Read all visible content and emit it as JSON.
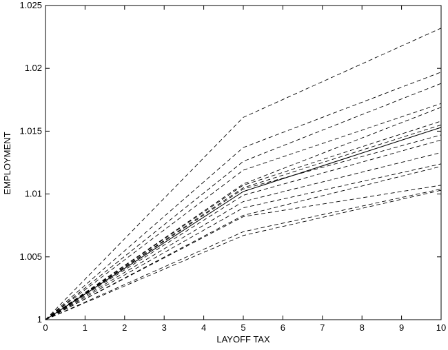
{
  "chart_data": {
    "type": "line",
    "title": "",
    "xlabel": "LAYOFF TAX",
    "ylabel": "EMPLOYMENT",
    "xlim": [
      0,
      10
    ],
    "ylim": [
      1.0,
      1.025
    ],
    "xticks": [
      0,
      1,
      2,
      3,
      4,
      5,
      6,
      7,
      8,
      9,
      10
    ],
    "yticks": [
      1,
      1.005,
      1.01,
      1.015,
      1.02,
      1.025
    ],
    "ytick_labels": [
      "1",
      "1.005",
      "1.01",
      "1.015",
      "1.02",
      "1.025"
    ],
    "grid": false,
    "legend": "none",
    "x": [
      0,
      5,
      10
    ],
    "series": [
      {
        "style": "solid",
        "values": [
          1.0,
          1.0102,
          1.0153
        ]
      },
      {
        "style": "dashed",
        "values": [
          1.0,
          1.0161,
          1.0232
        ]
      },
      {
        "style": "dashed",
        "values": [
          1.0,
          1.0137,
          1.0197
        ]
      },
      {
        "style": "dashed",
        "values": [
          1.0,
          1.0126,
          1.0188
        ]
      },
      {
        "style": "dashed",
        "values": [
          1.0,
          1.0119,
          1.0172
        ]
      },
      {
        "style": "dashed",
        "values": [
          1.0,
          1.0108,
          1.0169
        ]
      },
      {
        "style": "dashed",
        "values": [
          1.0,
          1.0107,
          1.0158
        ]
      },
      {
        "style": "dashed",
        "values": [
          1.0,
          1.0105,
          1.0155
        ]
      },
      {
        "style": "dashed",
        "values": [
          1.0,
          1.0104,
          1.0147
        ]
      },
      {
        "style": "dashed",
        "values": [
          1.0,
          1.0099,
          1.0143
        ]
      },
      {
        "style": "dashed",
        "values": [
          1.0,
          1.0094,
          1.0133
        ]
      },
      {
        "style": "dashed",
        "values": [
          1.0,
          1.0089,
          1.0124
        ]
      },
      {
        "style": "dashed",
        "values": [
          1.0,
          1.0083,
          1.0122
        ]
      },
      {
        "style": "dashed",
        "values": [
          1.0,
          1.0082,
          1.0107
        ]
      },
      {
        "style": "dashed",
        "values": [
          1.0,
          1.007,
          1.0104
        ]
      },
      {
        "style": "dashed",
        "values": [
          1.0,
          1.0067,
          1.0103
        ]
      }
    ]
  }
}
